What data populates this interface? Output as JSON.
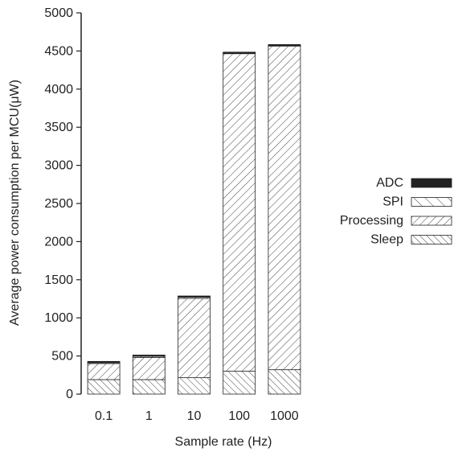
{
  "chart_data": {
    "type": "bar",
    "stacked": true,
    "title": "",
    "xlabel": "Sample rate (Hz)",
    "ylabel": "Average power consumption per MCU(μW)",
    "categories": [
      "0.1",
      "1",
      "10",
      "100",
      "1000"
    ],
    "ylim": [
      0,
      5000
    ],
    "yticks": [
      0,
      500,
      1000,
      1500,
      2000,
      2500,
      3000,
      3500,
      4000,
      4500,
      5000
    ],
    "series": [
      {
        "name": "Sleep",
        "pattern": "back-diagonal-hatch",
        "values": [
          190,
          190,
          215,
          300,
          320
        ]
      },
      {
        "name": "Processing",
        "pattern": "forward-diagonal-hatch",
        "values": [
          210,
          290,
          1040,
          4165,
          4245
        ]
      },
      {
        "name": "SPI",
        "pattern": "sparse-back-diagonal-hatch",
        "values": [
          12,
          15,
          15,
          3,
          3
        ]
      },
      {
        "name": "ADC",
        "pattern": "solid-dark",
        "values": [
          8,
          10,
          12,
          2,
          2
        ]
      }
    ],
    "legend": {
      "placement": "right",
      "order": [
        "ADC",
        "SPI",
        "Processing",
        "Sleep"
      ]
    },
    "grid": false,
    "colors": {
      "ink": "#222222",
      "adc": "#222222",
      "background": "#ffffff"
    }
  }
}
